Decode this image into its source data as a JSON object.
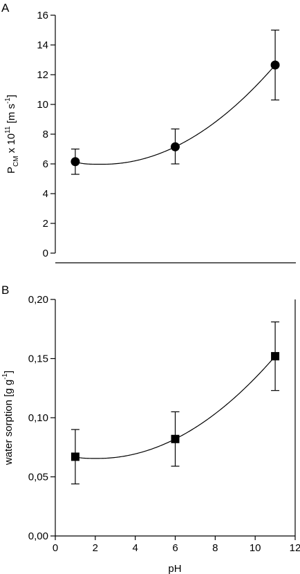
{
  "chart_data": [
    {
      "panel": "A",
      "type": "scatter",
      "marker": "circle",
      "x": [
        1,
        6,
        11
      ],
      "y": [
        6.15,
        7.15,
        12.65
      ],
      "y_err_lower": [
        0.85,
        1.15,
        2.35
      ],
      "y_err_upper": [
        0.85,
        1.2,
        2.35
      ],
      "xlim": [
        0,
        12
      ],
      "ylim": [
        0,
        16
      ],
      "yticks": [
        0,
        2,
        4,
        6,
        8,
        10,
        12,
        14,
        16
      ],
      "ytick_labels": [
        "0",
        "2",
        "4",
        "6",
        "8",
        "10",
        "12",
        "14",
        "16"
      ],
      "ylabel": {
        "main": "P",
        "sub": "CM",
        "middle": " x 10",
        "sup": "11",
        "unit_open": " [m s",
        "unit_sup": "-1",
        "unit_close": "]"
      },
      "fit_curve": true,
      "grid": false,
      "color": "#000000"
    },
    {
      "panel": "B",
      "type": "scatter",
      "marker": "square",
      "x": [
        1,
        6,
        11
      ],
      "y": [
        0.067,
        0.082,
        0.152
      ],
      "y_err_lower": [
        0.023,
        0.023,
        0.029
      ],
      "y_err_upper": [
        0.023,
        0.023,
        0.029
      ],
      "xlim": [
        0,
        12
      ],
      "ylim": [
        0,
        0.2
      ],
      "xticks": [
        0,
        2,
        4,
        6,
        8,
        10,
        12
      ],
      "xtick_labels": [
        "0",
        "2",
        "4",
        "6",
        "8",
        "10",
        "12"
      ],
      "yticks": [
        0,
        0.05,
        0.1,
        0.15,
        0.2
      ],
      "ytick_labels": [
        "0,00",
        "0,05",
        "0,10",
        "0,15",
        "0,20"
      ],
      "xlabel": "pH",
      "ylabel": {
        "main": "water sorption [g g",
        "sup": "-1",
        "close": "]"
      },
      "fit_curve": true,
      "grid": false,
      "color": "#000000"
    }
  ],
  "panel_letters": [
    "A",
    "B"
  ]
}
